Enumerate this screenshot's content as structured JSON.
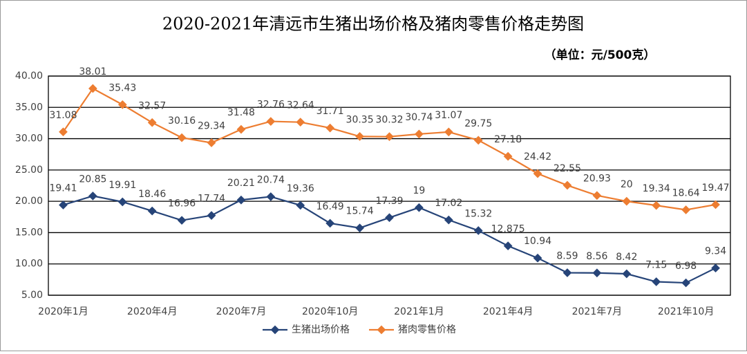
{
  "chart_data": {
    "type": "line",
    "title": "2020-2021年清远市生猪出场价格及猪肉零售价格走势图",
    "subtitle": "（单位：元/500克）",
    "categories": [
      "2020年1月",
      null,
      null,
      "2020年4月",
      null,
      null,
      "2020年7月",
      null,
      null,
      "2020年10月",
      null,
      null,
      "2021年1月",
      null,
      null,
      "2021年4月",
      null,
      null,
      "2021年7月",
      null,
      null,
      "2021年10月",
      null
    ],
    "series": [
      {
        "name": "生猪出场价格",
        "color": "#264478",
        "values": [
          19.41,
          20.85,
          19.91,
          18.46,
          16.96,
          17.74,
          20.21,
          20.74,
          19.36,
          16.49,
          15.74,
          17.39,
          19,
          17.02,
          15.32,
          12.875,
          10.94,
          8.59,
          8.56,
          8.42,
          7.15,
          6.98,
          9.34
        ]
      },
      {
        "name": "猪肉零售价格",
        "color": "#ed7d31",
        "values": [
          31.08,
          38.01,
          35.43,
          32.57,
          30.16,
          29.34,
          31.48,
          32.76,
          32.64,
          31.71,
          30.35,
          30.32,
          30.74,
          31.07,
          29.75,
          27.18,
          24.42,
          22.55,
          20.93,
          20,
          19.34,
          18.64,
          19.47
        ]
      }
    ],
    "ylim": [
      5,
      40
    ],
    "yticks": [
      {
        "value": 5,
        "label": "5.00"
      },
      {
        "value": 10,
        "label": "10.00"
      },
      {
        "value": 15,
        "label": "15.00"
      },
      {
        "value": 20,
        "label": "20.00"
      },
      {
        "value": 25,
        "label": "25.00"
      },
      {
        "value": 30,
        "label": "30.00"
      },
      {
        "value": 35,
        "label": "35.00"
      },
      {
        "value": 40,
        "label": "40.00"
      }
    ],
    "grid": true,
    "legend": "bottom"
  }
}
